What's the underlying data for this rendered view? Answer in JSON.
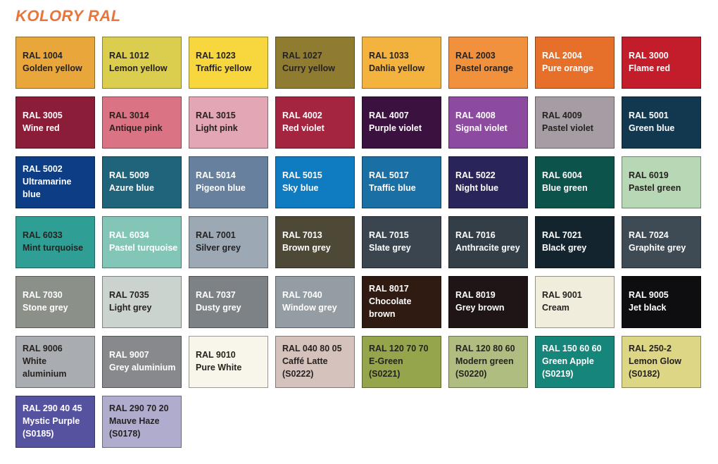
{
  "title": "KOLORY RAL",
  "colors": {
    "background": "#FFFFFF",
    "title": "#E8753C",
    "dark_text": "#262220",
    "light_text": "#FFFFFF",
    "swatch_border": "rgba(0,0,0,0.38)"
  },
  "swatches": [
    {
      "code": "RAL 1004",
      "name": "Golden yellow",
      "sub": "",
      "hex": "#E9A63B",
      "text": "dark"
    },
    {
      "code": "RAL 1012",
      "name": "Lemon yellow",
      "sub": "",
      "hex": "#DBCD4D",
      "text": "dark"
    },
    {
      "code": "RAL 1023",
      "name": "Traffic yellow",
      "sub": "",
      "hex": "#F8D63E",
      "text": "dark"
    },
    {
      "code": "RAL 1027",
      "name": "Curry yellow",
      "sub": "",
      "hex": "#8F7C31",
      "text": "dark"
    },
    {
      "code": "RAL 1033",
      "name": "Dahlia yellow",
      "sub": "",
      "hex": "#F4B23F",
      "text": "dark"
    },
    {
      "code": "RAL 2003",
      "name": "Pastel orange",
      "sub": "",
      "hex": "#F2913D",
      "text": "dark"
    },
    {
      "code": "RAL 2004",
      "name": "Pure orange",
      "sub": "",
      "hex": "#E66F2A",
      "text": "light"
    },
    {
      "code": "RAL 3000",
      "name": "Flame red",
      "sub": "",
      "hex": "#C31C2B",
      "text": "light"
    },
    {
      "code": "RAL 3005",
      "name": "Wine red",
      "sub": "",
      "hex": "#8C1D39",
      "text": "light"
    },
    {
      "code": "RAL 3014",
      "name": "Antique pink",
      "sub": "",
      "hex": "#DA7383",
      "text": "dark"
    },
    {
      "code": "RAL 3015",
      "name": "Light pink",
      "sub": "",
      "hex": "#E2A6B4",
      "text": "dark"
    },
    {
      "code": "RAL 4002",
      "name": "Red violet",
      "sub": "",
      "hex": "#A32540",
      "text": "light"
    },
    {
      "code": "RAL 4007",
      "name": "Purple violet",
      "sub": "",
      "hex": "#3B123F",
      "text": "light"
    },
    {
      "code": "RAL 4008",
      "name": "Signal violet",
      "sub": "",
      "hex": "#8C4B9E",
      "text": "light"
    },
    {
      "code": "RAL 4009",
      "name": "Pastel violet",
      "sub": "",
      "hex": "#A59CA4",
      "text": "dark"
    },
    {
      "code": "RAL 5001",
      "name": "Green blue",
      "sub": "",
      "hex": "#123850",
      "text": "light"
    },
    {
      "code": "RAL 5002",
      "name": "Ultramarine\nblue",
      "sub": "",
      "hex": "#0D3D85",
      "text": "light"
    },
    {
      "code": "RAL 5009",
      "name": "Azure blue",
      "sub": "",
      "hex": "#1F647B",
      "text": "light"
    },
    {
      "code": "RAL 5014",
      "name": "Pigeon blue",
      "sub": "",
      "hex": "#66809E",
      "text": "light"
    },
    {
      "code": "RAL 5015",
      "name": "Sky blue",
      "sub": "",
      "hex": "#0F7BC0",
      "text": "light"
    },
    {
      "code": "RAL 5017",
      "name": "Traffic blue",
      "sub": "",
      "hex": "#1A6FA5",
      "text": "light"
    },
    {
      "code": "RAL 5022",
      "name": "Night blue",
      "sub": "",
      "hex": "#292459",
      "text": "light"
    },
    {
      "code": "RAL 6004",
      "name": "Blue green",
      "sub": "",
      "hex": "#0B534B",
      "text": "light"
    },
    {
      "code": "RAL 6019",
      "name": "Pastel green",
      "sub": "",
      "hex": "#B7D8B5",
      "text": "dark"
    },
    {
      "code": "RAL 6033",
      "name": "Mint turquoise",
      "sub": "",
      "hex": "#2F9F95",
      "text": "dark"
    },
    {
      "code": "RAL 6034",
      "name": "Pastel turquoise",
      "sub": "",
      "hex": "#83C6B8",
      "text": "light"
    },
    {
      "code": "RAL 7001",
      "name": "Silver grey",
      "sub": "",
      "hex": "#9CA9B5",
      "text": "dark"
    },
    {
      "code": "RAL 7013",
      "name": "Brown grey",
      "sub": "",
      "hex": "#4E4937",
      "text": "light"
    },
    {
      "code": "RAL 7015",
      "name": "Slate grey",
      "sub": "",
      "hex": "#3A454F",
      "text": "light"
    },
    {
      "code": "RAL 7016",
      "name": "Anthracite grey",
      "sub": "",
      "hex": "#333E47",
      "text": "light"
    },
    {
      "code": "RAL 7021",
      "name": "Black grey",
      "sub": "",
      "hex": "#14242E",
      "text": "light"
    },
    {
      "code": "RAL 7024",
      "name": "Graphite grey",
      "sub": "",
      "hex": "#3E4A54",
      "text": "light"
    },
    {
      "code": "RAL 7030",
      "name": "Stone grey",
      "sub": "",
      "hex": "#8B9089",
      "text": "light"
    },
    {
      "code": "RAL 7035",
      "name": "Light grey",
      "sub": "",
      "hex": "#CBD3CF",
      "text": "dark"
    },
    {
      "code": "RAL 7037",
      "name": "Dusty grey",
      "sub": "",
      "hex": "#7D8287",
      "text": "light"
    },
    {
      "code": "RAL 7040",
      "name": "Window grey",
      "sub": "",
      "hex": "#939DA3",
      "text": "light"
    },
    {
      "code": "RAL 8017",
      "name": "Chocolate\nbrown",
      "sub": "",
      "hex": "#2F1B12",
      "text": "light"
    },
    {
      "code": "RAL 8019",
      "name": "Grey brown",
      "sub": "",
      "hex": "#1F1516",
      "text": "light"
    },
    {
      "code": "RAL 9001",
      "name": "Cream",
      "sub": "",
      "hex": "#F0EDDC",
      "text": "dark"
    },
    {
      "code": "RAL 9005",
      "name": "Jet black",
      "sub": "",
      "hex": "#0E0E10",
      "text": "light"
    },
    {
      "code": "RAL 9006",
      "name": "White\naluminium",
      "sub": "",
      "hex": "#A9ADB1",
      "text": "dark"
    },
    {
      "code": "RAL 9007",
      "name": "Grey aluminium",
      "sub": "",
      "hex": "#87898C",
      "text": "light"
    },
    {
      "code": "RAL 9010",
      "name": "Pure White",
      "sub": "",
      "hex": "#F8F6EA",
      "text": "dark"
    },
    {
      "code": "RAL 040 80 05",
      "name": "Caffé Latte",
      "sub": "(S0222)",
      "hex": "#D5C2BD",
      "text": "dark"
    },
    {
      "code": "RAL 120 70 70",
      "name": "E-Green",
      "sub": "(S0221)",
      "hex": "#94A54C",
      "text": "dark"
    },
    {
      "code": "RAL 120 80 60",
      "name": "Modern green",
      "sub": "(S0220)",
      "hex": "#AFBE80",
      "text": "dark"
    },
    {
      "code": "RAL 150 60 60",
      "name": "Green Apple",
      "sub": "(S0219)",
      "hex": "#16857A",
      "text": "light"
    },
    {
      "code": "RAL 250-2",
      "name": "Lemon Glow",
      "sub": "(S0182)",
      "hex": "#DDD684",
      "text": "dark"
    },
    {
      "code": "RAL 290 40 45",
      "name": "Mystic Purple",
      "sub": "(S0185)",
      "hex": "#5553A0",
      "text": "light"
    },
    {
      "code": "RAL 290 70 20",
      "name": "Mauve Haze",
      "sub": "(S0178)",
      "hex": "#AFACCE",
      "text": "dark"
    }
  ]
}
